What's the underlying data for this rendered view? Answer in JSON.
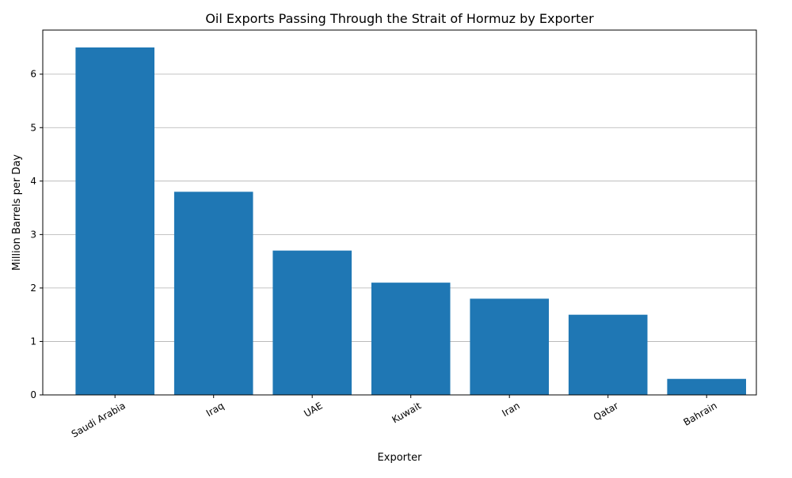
{
  "chart_data": {
    "type": "bar",
    "title": "Oil Exports Passing Through the Strait of Hormuz by Exporter",
    "xlabel": "Exporter",
    "ylabel": "Million Barrels per Day",
    "categories": [
      "Saudi Arabia",
      "Iraq",
      "UAE",
      "Kuwait",
      "Iran",
      "Qatar",
      "Bahrain"
    ],
    "values": [
      6.5,
      3.8,
      2.7,
      2.1,
      1.8,
      1.5,
      0.3
    ],
    "ylim": [
      0,
      6.825
    ],
    "yticks": [
      "0",
      "1",
      "2",
      "3",
      "4",
      "5",
      "6"
    ],
    "grid": "horizontal",
    "legend": "none",
    "bar_color": "#1f77b4"
  }
}
